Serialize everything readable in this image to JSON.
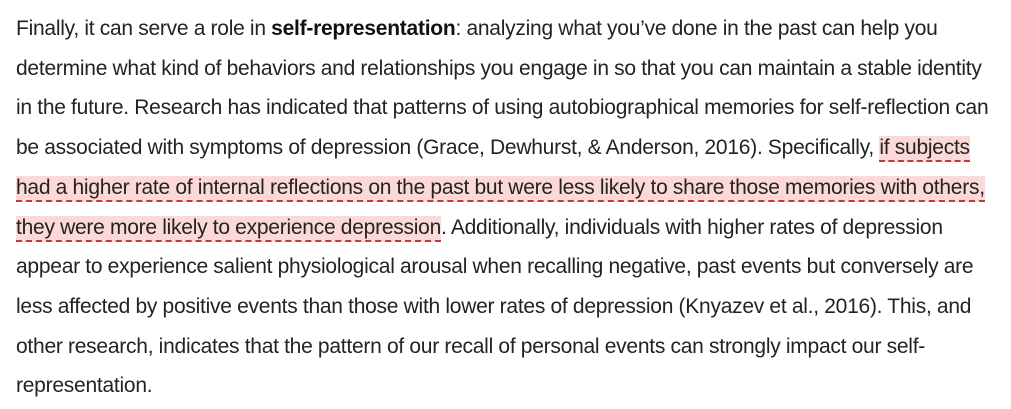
{
  "paragraph": {
    "before_term": "Finally, it can serve a role in ",
    "term": "self-representation",
    "after_term": ": analyzing what you’ve done in the past can help you determine what kind of behaviors and relationships you engage in so that you can maintain a stable identity in the future. Research has indicated that patterns of using autobiographical memories for self-reflection can be associated with symptoms of depression (Grace, Dewhurst, & Anderson, 2016). Specifically, ",
    "highlighted": "if subjects had a higher rate of internal reflections on the past but were less likely to share those memories with others, they were more likely to experience depression",
    "after_highlight": ". Additionally, individuals with higher rates of depression appear to experience salient physiological arousal when recalling negative, past events but conversely are less affected by positive events than those with lower rates of depression (Knyazev et al., 2016). This, and other research, indicates that the pattern of our recall of personal events can strongly impact our self-representation."
  },
  "colors": {
    "text": "#232323",
    "highlight_background": "#fbd9d9",
    "highlight_underline": "#c23a3a"
  }
}
